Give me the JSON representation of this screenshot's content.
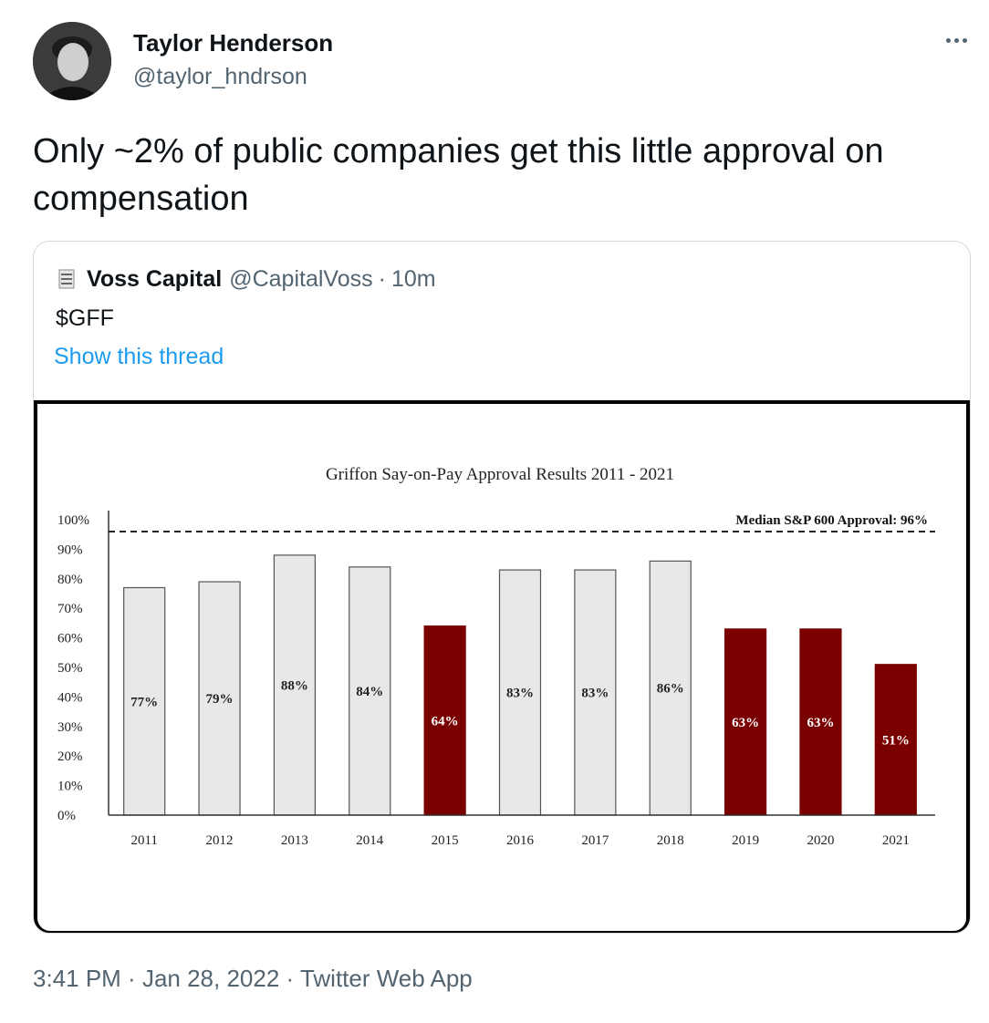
{
  "tweet": {
    "author_name": "Taylor Henderson",
    "author_handle": "@taylor_hndrson",
    "text": "Only ~2% of public companies get this little approval on compensation",
    "more_icon": "more-horizontal-icon"
  },
  "quoted": {
    "name": "Voss Capital",
    "handle": "@CapitalVoss",
    "separator": "·",
    "time": "10m",
    "text": "$GFF",
    "link": "Show this thread"
  },
  "chart_data": {
    "type": "bar",
    "title": "Griffon Say-on-Pay Approval Results 2011 - 2021",
    "categories": [
      "2011",
      "2012",
      "2013",
      "2014",
      "2015",
      "2016",
      "2017",
      "2018",
      "2019",
      "2020",
      "2021"
    ],
    "values": [
      77,
      79,
      88,
      84,
      64,
      83,
      83,
      86,
      63,
      63,
      51
    ],
    "value_labels": [
      "77%",
      "79%",
      "88%",
      "84%",
      "64%",
      "83%",
      "83%",
      "86%",
      "63%",
      "63%",
      "51%"
    ],
    "highlight": [
      false,
      false,
      false,
      false,
      true,
      false,
      false,
      false,
      true,
      true,
      true
    ],
    "colors": {
      "normal": "#e8e8e8",
      "highlight": "#7a0000"
    },
    "ylim": [
      0,
      100
    ],
    "yticks": [
      "0%",
      "10%",
      "20%",
      "30%",
      "40%",
      "50%",
      "60%",
      "70%",
      "80%",
      "90%",
      "100%"
    ],
    "reference_line": {
      "value": 96,
      "label": "Median S&P 600 Approval: 96%"
    },
    "xlabel": "",
    "ylabel": "",
    "grid": false
  },
  "footer": {
    "time": "3:41 PM",
    "sep1": " · ",
    "date": "Jan 28, 2022",
    "sep2": " · ",
    "source": "Twitter Web App"
  }
}
